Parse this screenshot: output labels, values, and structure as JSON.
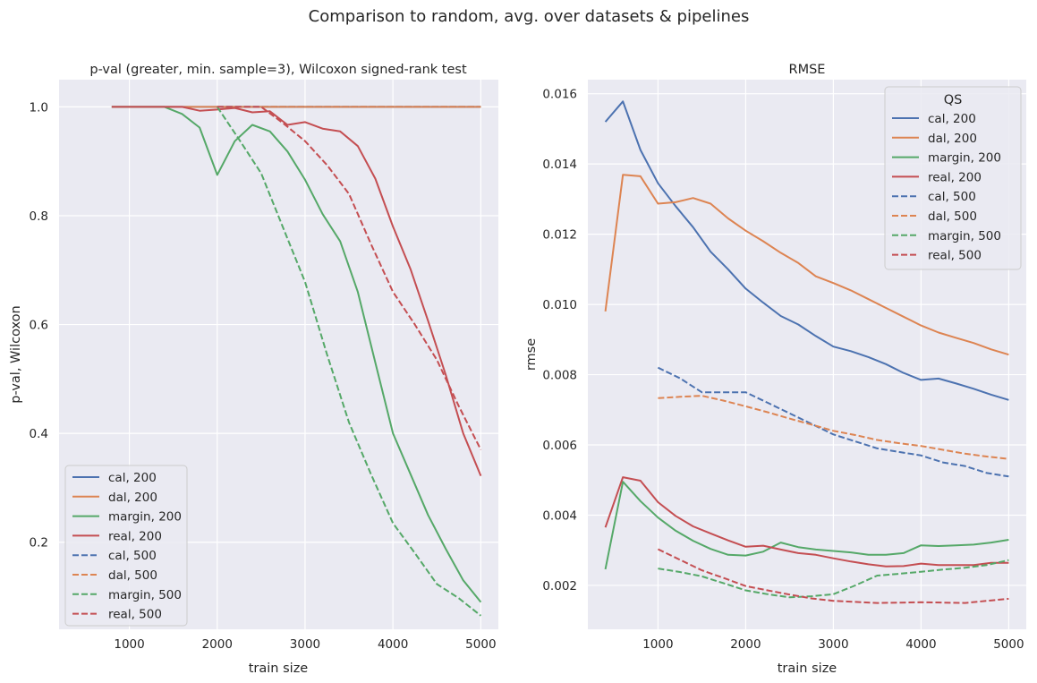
{
  "figure": {
    "suptitle": "Comparison to random, avg. over datasets & pipelines"
  },
  "chart_data": [
    {
      "type": "line",
      "title": "p-val (greater, min. sample=3), Wilcoxon signed-rank test",
      "xlabel": "train size",
      "ylabel": "p-val, Wilcoxon",
      "xlim": [
        200,
        5200
      ],
      "ylim": [
        0.04,
        1.05
      ],
      "xticks": [
        1000,
        2000,
        3000,
        4000,
        5000
      ],
      "yticks": [
        0.2,
        0.4,
        0.6,
        0.8,
        1.0
      ],
      "ytick_labels": [
        "0.2",
        "0.4",
        "0.6",
        "0.8",
        "1.0"
      ],
      "grid": true,
      "legend": {
        "title": "",
        "placement": "lower-left"
      },
      "series": [
        {
          "name": "cal, 200",
          "color": "#4c72b0",
          "dash": "solid",
          "x": [
            800,
            1000,
            1200,
            1400,
            1600,
            1800,
            2000,
            2200,
            2400,
            2600,
            2800,
            3000,
            3200,
            3400,
            3600,
            3800,
            4000,
            4200,
            4400,
            4600,
            4800,
            5000
          ],
          "y": [
            1,
            1,
            1,
            1,
            1,
            1,
            1,
            1,
            1,
            1,
            1,
            1,
            1,
            1,
            1,
            1,
            1,
            1,
            1,
            1,
            1,
            1
          ]
        },
        {
          "name": "dal, 200",
          "color": "#dd8452",
          "dash": "solid",
          "x": [
            800,
            1000,
            1200,
            1400,
            1600,
            1800,
            2000,
            2200,
            2400,
            2600,
            2800,
            3000,
            3200,
            3400,
            3600,
            3800,
            4000,
            4200,
            4400,
            4600,
            4800,
            5000
          ],
          "y": [
            1,
            1,
            1,
            1,
            1,
            1,
            1,
            1,
            1,
            1,
            1,
            1,
            1,
            1,
            1,
            1,
            1,
            1,
            1,
            1,
            1,
            1
          ]
        },
        {
          "name": "margin, 200",
          "color": "#55a868",
          "dash": "solid",
          "x": [
            800,
            1000,
            1200,
            1400,
            1600,
            1800,
            2000,
            2200,
            2400,
            2600,
            2800,
            3000,
            3200,
            3400,
            3600,
            3800,
            4000,
            4200,
            4400,
            4600,
            4800,
            5000
          ],
          "y": [
            1.0,
            1.0,
            1.0,
            1.0,
            0.987,
            0.962,
            0.875,
            0.937,
            0.967,
            0.955,
            0.918,
            0.866,
            0.803,
            0.753,
            0.66,
            0.53,
            0.4,
            0.325,
            0.25,
            0.188,
            0.13,
            0.09
          ]
        },
        {
          "name": "real, 200",
          "color": "#c44e52",
          "dash": "solid",
          "x": [
            800,
            1000,
            1200,
            1400,
            1600,
            1800,
            2000,
            2200,
            2400,
            2600,
            2800,
            3000,
            3200,
            3400,
            3600,
            3800,
            4000,
            4200,
            4400,
            4600,
            4800,
            5000
          ],
          "y": [
            1.0,
            1.0,
            1.0,
            1.0,
            1.0,
            0.993,
            0.995,
            0.998,
            0.99,
            0.992,
            0.967,
            0.972,
            0.96,
            0.955,
            0.928,
            0.868,
            0.78,
            0.702,
            0.607,
            0.508,
            0.4,
            0.322
          ]
        },
        {
          "name": "cal, 500",
          "color": "#4c72b0",
          "dash": "dashed",
          "x": [
            2000,
            2200,
            2400,
            2600,
            2800,
            3000,
            3200,
            3400,
            3600,
            3800,
            4000,
            4200,
            4400,
            4600,
            4800,
            5000
          ],
          "y": [
            1,
            1,
            1,
            1,
            1,
            1,
            1,
            1,
            1,
            1,
            1,
            1,
            1,
            1,
            1,
            1
          ]
        },
        {
          "name": "dal, 500",
          "color": "#dd8452",
          "dash": "dashed",
          "x": [
            2000,
            2200,
            2400,
            2600,
            2800,
            3000,
            3200,
            3400,
            3600,
            3800,
            4000,
            4200,
            4400,
            4600,
            4800,
            5000
          ],
          "y": [
            1,
            1,
            1,
            1,
            1,
            1,
            1,
            1,
            1,
            1,
            1,
            1,
            1,
            1,
            1,
            1
          ]
        },
        {
          "name": "margin, 500",
          "color": "#55a868",
          "dash": "dashed",
          "x": [
            2000,
            2250,
            2500,
            2750,
            3000,
            3250,
            3500,
            3750,
            4000,
            4250,
            4500,
            4750,
            5000
          ],
          "y": [
            1.0,
            0.94,
            0.878,
            0.778,
            0.678,
            0.545,
            0.42,
            0.325,
            0.235,
            0.18,
            0.123,
            0.097,
            0.065
          ]
        },
        {
          "name": "real, 500",
          "color": "#c44e52",
          "dash": "dashed",
          "x": [
            2000,
            2250,
            2500,
            2750,
            3000,
            3250,
            3500,
            3750,
            4000,
            4250,
            4500,
            4750,
            5000
          ],
          "y": [
            1.0,
            1.0,
            1.0,
            0.97,
            0.937,
            0.893,
            0.84,
            0.748,
            0.66,
            0.6,
            0.535,
            0.45,
            0.37
          ]
        }
      ]
    },
    {
      "type": "line",
      "title": "RMSE",
      "xlabel": "train size",
      "ylabel": "rmse",
      "xlim": [
        200,
        5200
      ],
      "ylim": [
        0.00075,
        0.0164
      ],
      "xticks": [
        1000,
        2000,
        3000,
        4000,
        5000
      ],
      "yticks": [
        0.002,
        0.004,
        0.006,
        0.008,
        0.01,
        0.012,
        0.014,
        0.016
      ],
      "ytick_labels": [
        "0.002",
        "0.004",
        "0.006",
        "0.008",
        "0.010",
        "0.012",
        "0.014",
        "0.016"
      ],
      "grid": true,
      "legend": {
        "title": "QS",
        "placement": "top-right"
      },
      "series": [
        {
          "name": "cal, 200",
          "color": "#4c72b0",
          "dash": "solid",
          "x": [
            400,
            600,
            800,
            1000,
            1200,
            1400,
            1600,
            1800,
            2000,
            2200,
            2400,
            2600,
            2800,
            3000,
            3200,
            3400,
            3600,
            3800,
            4000,
            4200,
            4400,
            4600,
            4800,
            5000
          ],
          "y": [
            0.0152,
            0.01578,
            0.0144,
            0.01345,
            0.0128,
            0.0122,
            0.0115,
            0.011,
            0.01045,
            0.01005,
            0.00967,
            0.00943,
            0.0091,
            0.0088,
            0.00867,
            0.0085,
            0.0083,
            0.00805,
            0.00785,
            0.00789,
            0.00775,
            0.0076,
            0.00743,
            0.00728
          ]
        },
        {
          "name": "dal, 200",
          "color": "#dd8452",
          "dash": "solid",
          "x": [
            400,
            600,
            800,
            1000,
            1200,
            1400,
            1600,
            1800,
            2000,
            2200,
            2400,
            2600,
            2800,
            3000,
            3200,
            3400,
            3600,
            3800,
            4000,
            4200,
            4400,
            4600,
            4800,
            5000
          ],
          "y": [
            0.0098,
            0.01369,
            0.01365,
            0.01287,
            0.01291,
            0.01303,
            0.01287,
            0.01245,
            0.0121,
            0.0118,
            0.01147,
            0.01118,
            0.0108,
            0.01061,
            0.0104,
            0.01015,
            0.0099,
            0.00965,
            0.0094,
            0.0092,
            0.00905,
            0.0089,
            0.00872,
            0.00857
          ]
        },
        {
          "name": "margin, 200",
          "color": "#55a868",
          "dash": "solid",
          "x": [
            400,
            600,
            800,
            1000,
            1200,
            1400,
            1600,
            1800,
            2000,
            2200,
            2400,
            2600,
            2800,
            3000,
            3200,
            3400,
            3600,
            3800,
            4000,
            4200,
            4400,
            4600,
            4800,
            5000
          ],
          "y": [
            0.00246,
            0.00495,
            0.0044,
            0.00393,
            0.00356,
            0.00327,
            0.00304,
            0.00287,
            0.00285,
            0.00296,
            0.00322,
            0.00309,
            0.00302,
            0.00298,
            0.00294,
            0.00287,
            0.00287,
            0.00292,
            0.00314,
            0.00312,
            0.00314,
            0.00316,
            0.00322,
            0.0033
          ]
        },
        {
          "name": "real, 200",
          "color": "#c44e52",
          "dash": "solid",
          "x": [
            400,
            600,
            800,
            1000,
            1200,
            1400,
            1600,
            1800,
            2000,
            2200,
            2400,
            2600,
            2800,
            3000,
            3200,
            3400,
            3600,
            3800,
            4000,
            4200,
            4400,
            4600,
            4800,
            5000
          ],
          "y": [
            0.00365,
            0.00508,
            0.00498,
            0.00437,
            0.00398,
            0.00368,
            0.00348,
            0.00328,
            0.0031,
            0.00313,
            0.00302,
            0.00292,
            0.00287,
            0.00277,
            0.00268,
            0.0026,
            0.00254,
            0.00255,
            0.00262,
            0.00258,
            0.00258,
            0.00258,
            0.00264,
            0.00264
          ]
        },
        {
          "name": "cal, 500",
          "color": "#4c72b0",
          "dash": "dashed",
          "x": [
            1000,
            1250,
            1500,
            1750,
            2000,
            2250,
            2500,
            2750,
            3000,
            3250,
            3500,
            3750,
            4000,
            4250,
            4500,
            4750,
            5000
          ],
          "y": [
            0.0082,
            0.0079,
            0.0075,
            0.0075,
            0.0075,
            0.0072,
            0.0069,
            0.0066,
            0.0063,
            0.0061,
            0.0059,
            0.0058,
            0.0057,
            0.0055,
            0.0054,
            0.0052,
            0.0051
          ]
        },
        {
          "name": "dal, 500",
          "color": "#dd8452",
          "dash": "dashed",
          "x": [
            1000,
            1250,
            1500,
            1750,
            2000,
            2250,
            2500,
            2750,
            3000,
            3250,
            3500,
            3750,
            4000,
            4250,
            4500,
            4750,
            5000
          ],
          "y": [
            0.00733,
            0.00737,
            0.0074,
            0.00726,
            0.0071,
            0.00693,
            0.00675,
            0.00658,
            0.0064,
            0.00628,
            0.00614,
            0.00605,
            0.00597,
            0.00586,
            0.00575,
            0.00567,
            0.0056
          ]
        },
        {
          "name": "margin, 500",
          "color": "#55a868",
          "dash": "dashed",
          "x": [
            1000,
            1250,
            1500,
            1750,
            2000,
            2250,
            2500,
            2750,
            3000,
            3250,
            3500,
            3750,
            4000,
            4250,
            4500,
            4750,
            5000
          ],
          "y": [
            0.00248,
            0.00238,
            0.00226,
            0.00206,
            0.00186,
            0.00175,
            0.00166,
            0.00169,
            0.00175,
            0.002,
            0.00228,
            0.00233,
            0.00239,
            0.00245,
            0.0025,
            0.00258,
            0.00272
          ]
        },
        {
          "name": "real, 500",
          "color": "#c44e52",
          "dash": "dashed",
          "x": [
            1000,
            1250,
            1500,
            1750,
            2000,
            2250,
            2500,
            2750,
            3000,
            3250,
            3500,
            3750,
            4000,
            4250,
            4500,
            4750,
            5000
          ],
          "y": [
            0.00303,
            0.00273,
            0.00243,
            0.00221,
            0.00198,
            0.00186,
            0.00174,
            0.00163,
            0.00156,
            0.00153,
            0.0015,
            0.00151,
            0.00152,
            0.00151,
            0.0015,
            0.00156,
            0.00162
          ]
        }
      ]
    }
  ]
}
